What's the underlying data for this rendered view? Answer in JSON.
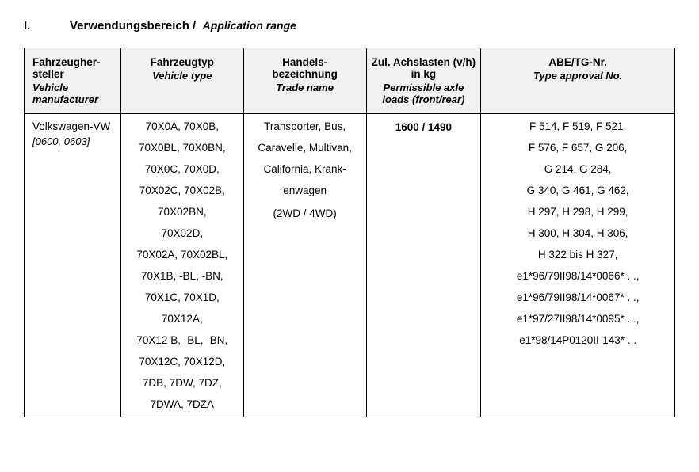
{
  "heading": {
    "roman": "I.",
    "title_de": "Verwendungsbereich /",
    "title_en": "Application range"
  },
  "headers": {
    "manufacturer": {
      "de": "Fahrzeugher-\nsteller",
      "en": "Vehicle manufacturer"
    },
    "vehicle_type": {
      "de": "Fahrzeugtyp",
      "en": "Vehicle type"
    },
    "trade_name": {
      "de": "Handels-\nbezeichnung",
      "en": "Trade name"
    },
    "axle_loads": {
      "de": "Zul. Achslasten (v/h) in kg",
      "en": "Permissible axle loads (front/rear)"
    },
    "abe": {
      "de": "ABE/TG-Nr.",
      "en": "Type approval No."
    }
  },
  "row": {
    "manufacturer": {
      "name": "Volkswagen-VW",
      "codes": "[0600, 0603]"
    },
    "vehicle_type_lines": [
      "70X0A, 70X0B,",
      "70X0BL, 70X0BN,",
      "70X0C, 70X0D,",
      "70X02C, 70X02B,",
      "70X02BN,",
      "70X02D,",
      "70X02A, 70X02BL,",
      "70X1B, -BL, -BN,",
      "70X1C, 70X1D,",
      "70X12A,",
      "70X12 B, -BL, -BN,",
      "70X12C, 70X12D,",
      "7DB, 7DW, 7DZ,",
      "7DWA, 7DZA"
    ],
    "trade_name_lines": [
      "Transporter, Bus,",
      "Caravelle, Multivan,",
      "California, Krank-",
      "enwagen"
    ],
    "trade_name_paren": "(2WD / 4WD)",
    "axle_loads": "1600 / 1490",
    "abe_lines": [
      "F 514, F 519,  F 521,",
      "F 576,  F 657, G 206,",
      "G 214, G 284,",
      "G 340, G 461, G 462,",
      "H 297, H 298, H 299,",
      "H 300, H 304, H 306,",
      "H 322 bis H 327,",
      "e1*96/79II98/14*0066* . .,",
      "e1*96/79II98/14*0067* . .,",
      "e1*97/27II98/14*0095* . .,",
      "e1*98/14P0120II-143* . ."
    ]
  }
}
